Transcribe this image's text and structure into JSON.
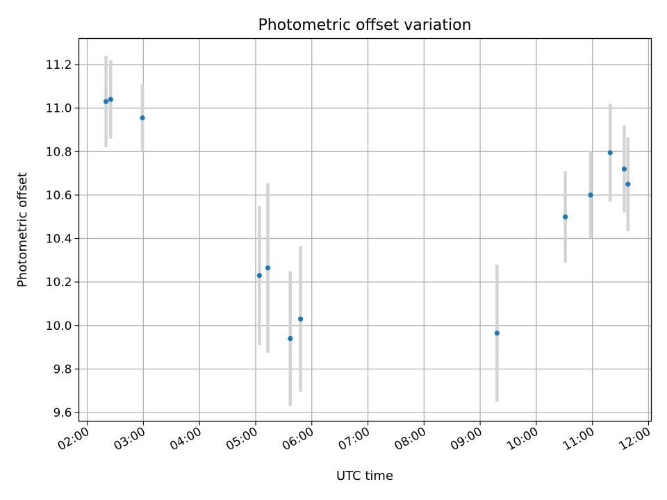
{
  "chart_data": {
    "type": "scatter",
    "title": "Photometric offset variation",
    "xlabel": "UTC time",
    "ylabel": "Photometric offset",
    "x_tick_labels": [
      "02:00",
      "03:00",
      "04:00",
      "05:00",
      "06:00",
      "07:00",
      "08:00",
      "09:00",
      "10:00",
      "11:00",
      "12:00"
    ],
    "x_tick_hours": [
      2,
      3,
      4,
      5,
      6,
      7,
      8,
      9,
      10,
      11,
      12
    ],
    "xlim_hours": [
      1.85,
      12.05
    ],
    "y_ticks": [
      9.6,
      9.8,
      10.0,
      10.2,
      10.4,
      10.6,
      10.8,
      11.0,
      11.2
    ],
    "y_tick_labels": [
      "9.6",
      "9.8",
      "10.0",
      "10.2",
      "10.4",
      "10.6",
      "10.8",
      "11.0",
      "11.2"
    ],
    "ylim": [
      9.56,
      11.32
    ],
    "grid": true,
    "colors": {
      "point": "#1f77b4",
      "error_bar": "#d3d3d3",
      "grid": "#b0b0b0"
    },
    "points": [
      {
        "time": "02:20",
        "y": 11.03,
        "yerr": 0.21
      },
      {
        "time": "02:25",
        "y": 11.04,
        "yerr": 0.18
      },
      {
        "time": "02:59",
        "y": 10.955,
        "yerr": 0.155
      },
      {
        "time": "05:04",
        "y": 10.23,
        "yerr": 0.32
      },
      {
        "time": "05:13",
        "y": 10.265,
        "yerr": 0.39
      },
      {
        "time": "05:37",
        "y": 9.94,
        "yerr": 0.31
      },
      {
        "time": "05:48",
        "y": 10.03,
        "yerr": 0.335
      },
      {
        "time": "09:18",
        "y": 9.965,
        "yerr": 0.315
      },
      {
        "time": "10:31",
        "y": 10.5,
        "yerr": 0.21
      },
      {
        "time": "10:58",
        "y": 10.6,
        "yerr": 0.2
      },
      {
        "time": "11:19",
        "y": 10.795,
        "yerr": 0.225
      },
      {
        "time": "11:34",
        "y": 10.72,
        "yerr": 0.2
      },
      {
        "time": "11:38",
        "y": 10.65,
        "yerr": 0.215
      }
    ]
  }
}
